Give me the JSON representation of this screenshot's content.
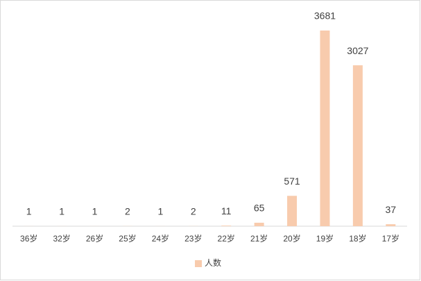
{
  "chart_data": {
    "type": "bar",
    "categories": [
      "36岁",
      "32岁",
      "26岁",
      "25岁",
      "24岁",
      "23岁",
      "22岁",
      "21岁",
      "20岁",
      "19岁",
      "18岁",
      "17岁"
    ],
    "series": [
      {
        "name": "人数",
        "color": "#f8cbad",
        "values": [
          1,
          1,
          1,
          2,
          1,
          2,
          11,
          65,
          571,
          3681,
          3027,
          37
        ]
      }
    ],
    "data_labels": true,
    "legend": "bottom"
  }
}
